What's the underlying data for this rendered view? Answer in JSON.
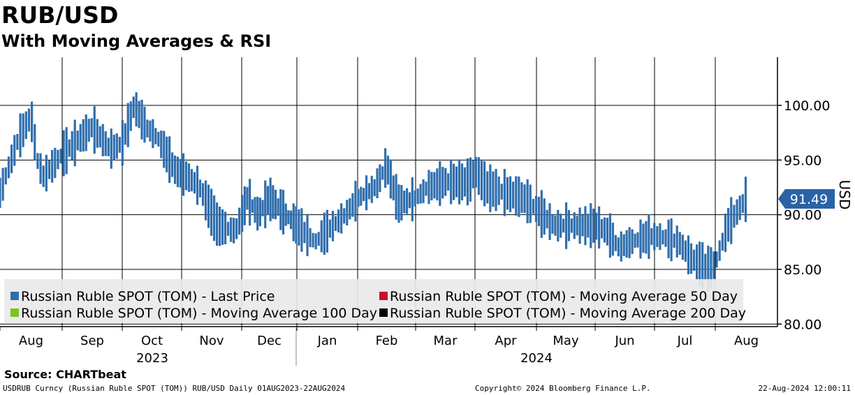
{
  "header": {
    "title": "RUB/USD",
    "subtitle": "With Moving Averages & RSI"
  },
  "colors": {
    "price": "#2f6ead",
    "ma50": "#c8102e",
    "ma100": "#7ac520",
    "ma200": "#000000",
    "price_tag": "#2a62a5"
  },
  "chart_data": {
    "type": "bar",
    "title": "RUB/USD",
    "subtitle": "With Moving Averages & RSI",
    "ylabel": "USD",
    "ylim": [
      79.5,
      104.5
    ],
    "yticks": [
      80.0,
      85.0,
      90.0,
      95.0,
      100.0
    ],
    "ytick_labels": [
      "80.00",
      "85.00",
      "90.00",
      "95.00",
      "100.00"
    ],
    "last_value": 91.49,
    "last_value_label": "91.49",
    "x_months": [
      "Aug",
      "Sep",
      "Oct",
      "Nov",
      "Dec",
      "Jan",
      "Feb",
      "Mar",
      "Apr",
      "May",
      "Jun",
      "Jul",
      "Aug"
    ],
    "x_years": [
      "2023",
      "2024"
    ],
    "legend": [
      "Russian Ruble SPOT (TOM) - Last Price",
      "Russian Ruble SPOT (TOM) - Moving Average 50 Day",
      "Russian Ruble SPOT (TOM) - Moving Average 100 Day",
      "Russian Ruble SPOT (TOM) - Moving Average 200 Day"
    ],
    "series": [
      {
        "name": "Russian Ruble SPOT (TOM) - Last Price",
        "anchors_month_index": [
          0.0,
          0.3,
          0.5,
          0.6,
          0.7,
          1.0,
          1.5,
          1.8,
          2.0,
          2.2,
          2.4,
          2.6,
          2.9,
          3.1,
          3.3,
          3.6,
          3.9,
          4.1,
          4.3,
          4.5,
          4.8,
          5.1,
          5.3,
          5.5,
          5.8,
          6.0,
          6.3,
          6.5,
          6.7,
          7.0,
          7.2,
          7.5,
          7.9,
          8.0,
          8.2,
          8.5,
          8.8,
          9.1,
          9.3,
          9.5,
          9.8,
          10.0,
          10.2,
          10.4,
          10.6,
          10.9,
          11.1,
          11.4,
          11.6,
          11.9,
          12.0,
          12.2,
          12.5
        ],
        "anchors_values": [
          92.0,
          97.0,
          99.0,
          95.0,
          93.5,
          95.5,
          98.0,
          96.0,
          96.5,
          100.0,
          98.0,
          97.0,
          94.0,
          93.5,
          92.5,
          89.0,
          88.5,
          91.5,
          90.0,
          91.5,
          90.0,
          88.5,
          87.5,
          88.5,
          90.0,
          91.5,
          92.5,
          94.5,
          91.0,
          91.5,
          92.5,
          93.0,
          93.0,
          94.0,
          92.5,
          92.0,
          91.5,
          90.0,
          89.0,
          89.0,
          89.0,
          89.0,
          88.5,
          87.0,
          87.5,
          88.0,
          88.0,
          87.5,
          86.0,
          85.0,
          85.5,
          89.0,
          91.5
        ]
      }
    ]
  },
  "footer": {
    "source": "Source: CHARTbeat",
    "left": "USDRUB Curncy (Russian Ruble SPOT (TOM)) RUB/USD  Daily 01AUG2023-22AUG2024",
    "mid": "Copyright© 2024 Bloomberg Finance L.P.",
    "right": "22-Aug-2024 12:00:11"
  }
}
